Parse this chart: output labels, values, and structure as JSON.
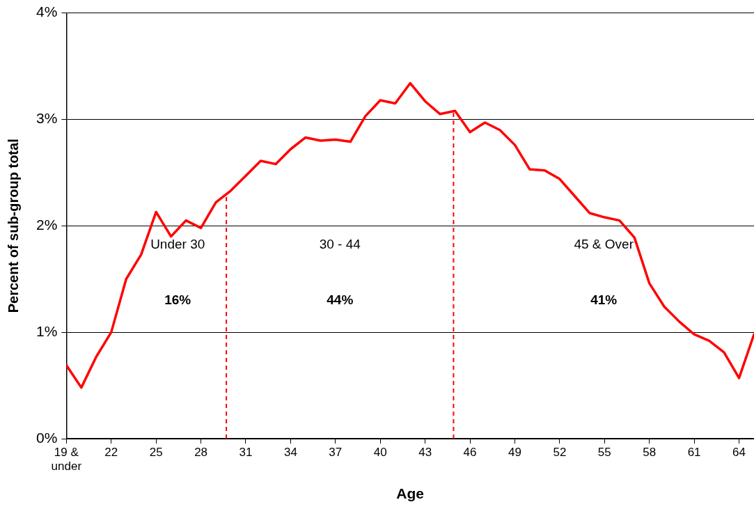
{
  "chart_data": {
    "type": "line",
    "xlabel": "Age",
    "ylabel": "Percent of sub-group total",
    "x": [
      19,
      20,
      21,
      22,
      23,
      24,
      25,
      26,
      27,
      28,
      29,
      30,
      31,
      32,
      33,
      34,
      35,
      36,
      37,
      38,
      39,
      40,
      41,
      42,
      43,
      44,
      45,
      46,
      47,
      48,
      49,
      50,
      51,
      52,
      53,
      54,
      55,
      56,
      57,
      58,
      59,
      60,
      61,
      62,
      63,
      64,
      65
    ],
    "series": [
      {
        "color": "#ff0000",
        "values": [
          0.69,
          0.48,
          0.77,
          1.0,
          1.5,
          1.73,
          2.13,
          1.9,
          2.05,
          1.98,
          2.22,
          2.33,
          2.47,
          2.61,
          2.58,
          2.72,
          2.83,
          2.8,
          2.81,
          2.79,
          3.03,
          3.18,
          3.15,
          3.34,
          3.17,
          3.05,
          3.08,
          2.88,
          2.97,
          2.9,
          2.76,
          2.53,
          2.52,
          2.44,
          2.28,
          2.12,
          2.08,
          2.05,
          1.89,
          1.46,
          1.24,
          1.1,
          0.98,
          0.92,
          0.81,
          0.57,
          0.98
        ]
      }
    ],
    "xlim": [
      19,
      65
    ],
    "xticks": [
      {
        "value": 19,
        "label": "19 & under"
      },
      22,
      25,
      28,
      31,
      34,
      37,
      40,
      43,
      46,
      49,
      52,
      55,
      58,
      61,
      64
    ],
    "ylim": [
      0,
      4
    ],
    "yticks": [
      {
        "value": 0,
        "label": "0%"
      },
      {
        "value": 1,
        "label": "1%"
      },
      {
        "value": 2,
        "label": "2%"
      },
      {
        "value": 3,
        "label": "3%"
      },
      {
        "value": 4,
        "label": "4%"
      }
    ],
    "grid": "y",
    "legend": false,
    "marker": "none",
    "line_style": "solid",
    "ref_lines": [
      {
        "axis": "x",
        "value": 29.7,
        "color": "#ff0000",
        "line_style": "dashed"
      },
      {
        "axis": "x",
        "value": 44.9,
        "color": "#ff0000",
        "line_style": "dashed"
      }
    ],
    "annotations": [
      "Under 30",
      "16%",
      "30 - 44",
      "44%",
      "45 & Over",
      "41%"
    ]
  }
}
